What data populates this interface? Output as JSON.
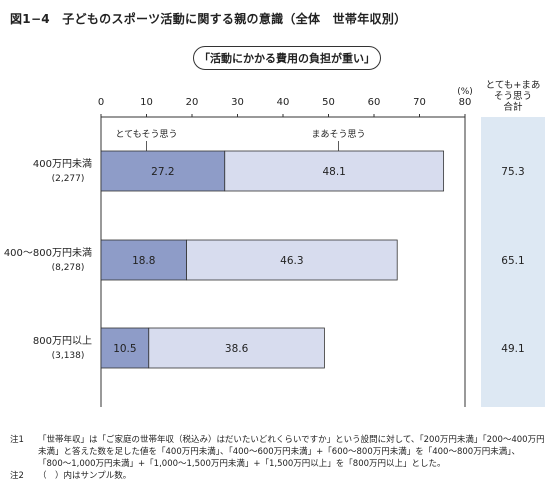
{
  "title": "図1−4　子どものスポーツ活動に関する親の意識（全体　世帯年収別）",
  "question": "「活動にかかる費用の負担が重い」",
  "total_header": "とても+まあ\nそう思う\n合計",
  "colors": {
    "very": "#8e9cc8",
    "somewhat": "#d7dcee",
    "total_bg": "#dde8f3",
    "stroke": "#333333"
  },
  "chart_data": {
    "type": "bar",
    "orientation": "horizontal",
    "stacked": true,
    "unit": "(%)",
    "xlim": [
      0,
      80
    ],
    "ticks": [
      0,
      10,
      20,
      30,
      40,
      50,
      60,
      70,
      80
    ],
    "grid": false,
    "categories": [
      {
        "label": "400万円未満",
        "n": "(2,277)"
      },
      {
        "label": "400〜800万円未満",
        "n": "(8,278)"
      },
      {
        "label": "800万円以上",
        "n": "(3,138)"
      }
    ],
    "series": [
      {
        "name": "とてもそう思う",
        "values": [
          27.2,
          18.8,
          10.5
        ]
      },
      {
        "name": "まあそう思う",
        "values": [
          48.1,
          46.3,
          38.6
        ]
      }
    ],
    "totals": [
      75.3,
      65.1,
      49.1
    ]
  },
  "notes": [
    {
      "label": "注1",
      "text": "「世帯年収」は「ご家庭の世帯年収（税込み）はだいたいどれくらいですか」という設問に対して、「200万円未満」「200〜400万円未満」と答えた数を足した値を「400万円未満」、「400〜600万円未満」+「600〜800万円未満」を「400〜800万円未満」、「800〜1,000万円未満」+「1,000〜1,500万円未満」+「1,500万円以上」を「800万円以上」とした。"
    },
    {
      "label": "注2",
      "text": "（　）内はサンプル数。"
    }
  ]
}
